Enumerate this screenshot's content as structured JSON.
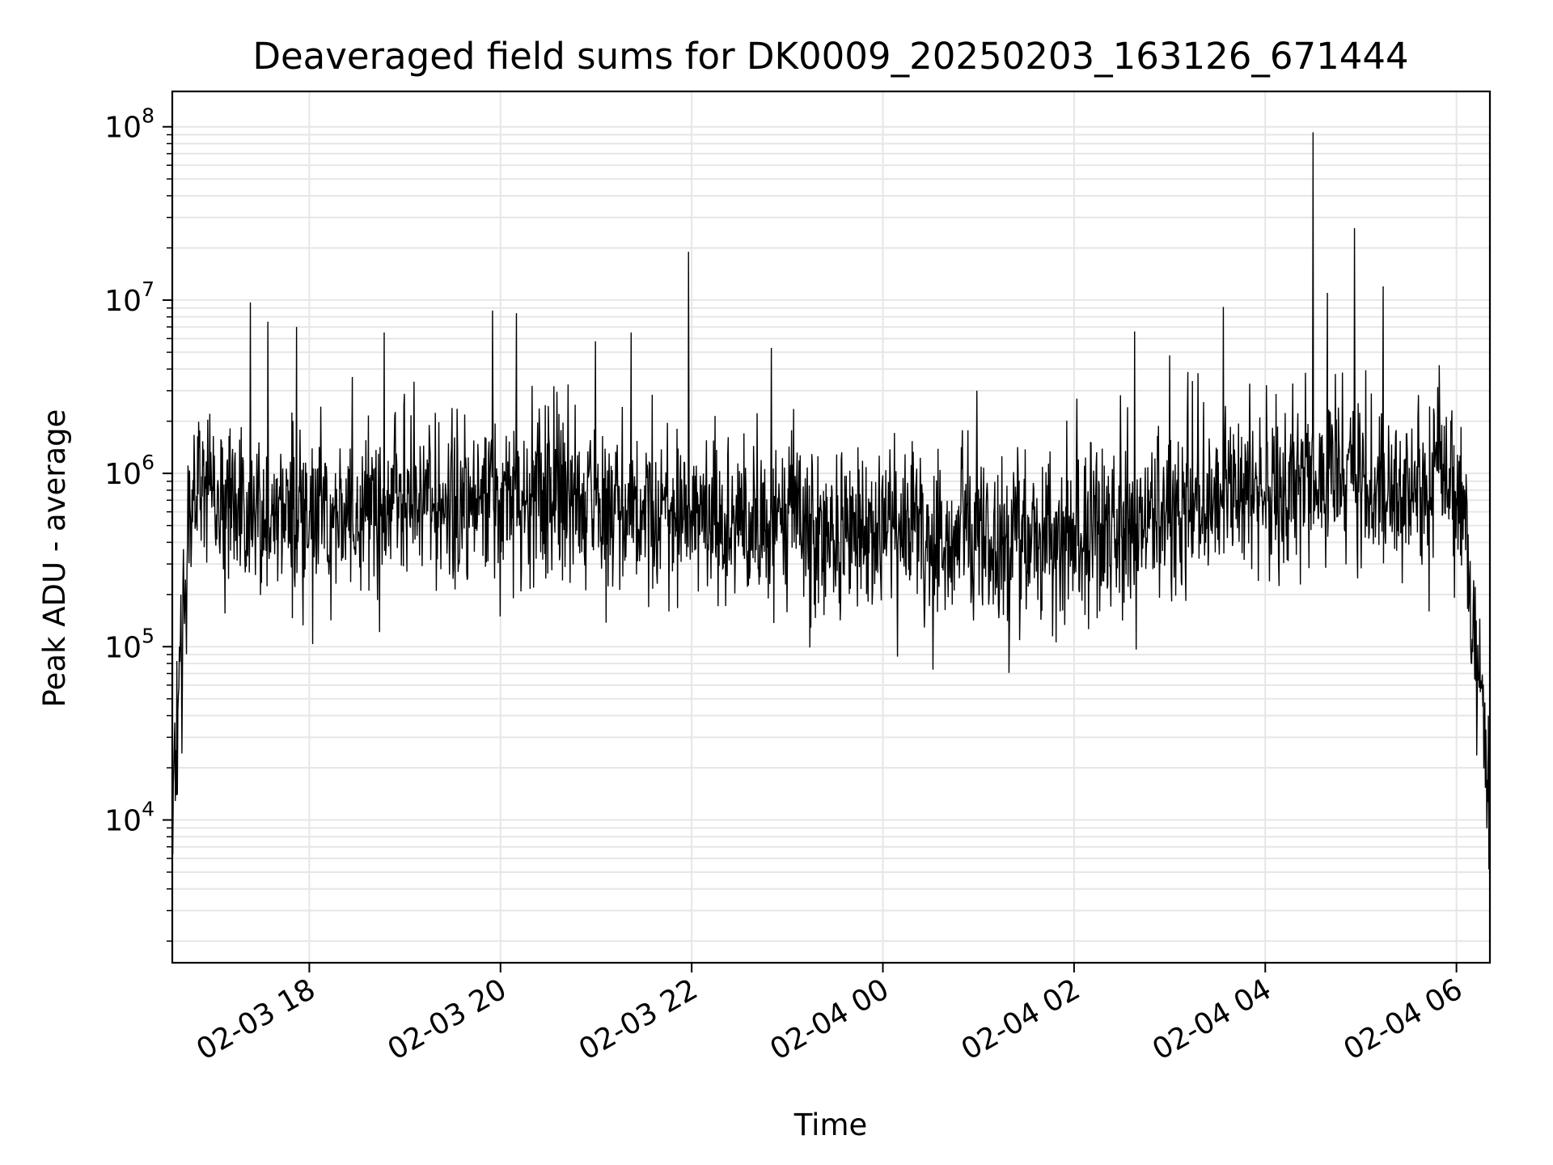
{
  "chart_data": {
    "type": "line",
    "title": "Deaveraged field sums for DK0009_20250203_163126_671444",
    "xlabel": "Time",
    "ylabel": "Peak ADU - average",
    "yscale": "log",
    "ylim": [
      1500,
      160000000
    ],
    "xlim": [
      "2025-02-03 16:34",
      "2025-02-04 06:21"
    ],
    "grid": true,
    "line_color": "#000000",
    "grid_color": "#e6e6e6",
    "x_ticks": [
      {
        "t": "2025-02-03 18:00",
        "label": "02-03 18"
      },
      {
        "t": "2025-02-03 20:00",
        "label": "02-03 20"
      },
      {
        "t": "2025-02-03 22:00",
        "label": "02-03 22"
      },
      {
        "t": "2025-02-04 00:00",
        "label": "02-04 00"
      },
      {
        "t": "2025-02-04 02:00",
        "label": "02-04 02"
      },
      {
        "t": "2025-02-04 04:00",
        "label": "02-04 04"
      },
      {
        "t": "2025-02-04 06:00",
        "label": "02-04 06"
      }
    ],
    "y_ticks": [
      {
        "value": 10000,
        "base": "10",
        "exp": "4"
      },
      {
        "value": 100000,
        "base": "10",
        "exp": "5"
      },
      {
        "value": 1000000,
        "base": "10",
        "exp": "6"
      },
      {
        "value": 10000000,
        "base": "10",
        "exp": "7"
      },
      {
        "value": 100000000,
        "base": "10",
        "exp": "8"
      }
    ],
    "envelope": [
      {
        "t": "2025-02-03 16:34",
        "v": 12000
      },
      {
        "t": "2025-02-03 16:37",
        "v": 40000
      },
      {
        "t": "2025-02-03 16:41",
        "v": 150000
      },
      {
        "t": "2025-02-03 16:45",
        "v": 550000
      },
      {
        "t": "2025-02-03 16:50",
        "v": 950000
      },
      {
        "t": "2025-02-03 17:05",
        "v": 650000
      },
      {
        "t": "2025-02-03 17:30",
        "v": 550000
      },
      {
        "t": "2025-02-03 18:00",
        "v": 550000
      },
      {
        "t": "2025-02-03 19:00",
        "v": 650000
      },
      {
        "t": "2025-02-03 20:00",
        "v": 700000
      },
      {
        "t": "2025-02-03 21:00",
        "v": 650000
      },
      {
        "t": "2025-02-03 22:00",
        "v": 600000
      },
      {
        "t": "2025-02-03 23:00",
        "v": 500000
      },
      {
        "t": "2025-02-04 00:00",
        "v": 420000
      },
      {
        "t": "2025-02-04 01:00",
        "v": 420000
      },
      {
        "t": "2025-02-04 02:00",
        "v": 430000
      },
      {
        "t": "2025-02-04 03:00",
        "v": 600000
      },
      {
        "t": "2025-02-04 04:00",
        "v": 800000
      },
      {
        "t": "2025-02-04 05:00",
        "v": 900000
      },
      {
        "t": "2025-02-04 06:00",
        "v": 800000
      },
      {
        "t": "2025-02-04 06:05",
        "v": 600000
      },
      {
        "t": "2025-02-04 06:10",
        "v": 120000
      },
      {
        "t": "2025-02-04 06:16",
        "v": 50000
      },
      {
        "t": "2025-02-04 06:21",
        "v": 14000
      }
    ],
    "spikes": [
      {
        "t": "2025-02-03 16:34",
        "v": 7000
      },
      {
        "t": "2025-02-03 17:23",
        "v": 9700000
      },
      {
        "t": "2025-02-03 17:34",
        "v": 7500000
      },
      {
        "t": "2025-02-03 17:52",
        "v": 7000000
      },
      {
        "t": "2025-02-03 18:27",
        "v": 3600000
      },
      {
        "t": "2025-02-03 18:47",
        "v": 6500000
      },
      {
        "t": "2025-02-03 19:55",
        "v": 8700000
      },
      {
        "t": "2025-02-03 20:10",
        "v": 8400000
      },
      {
        "t": "2025-02-03 21:22",
        "v": 6500000
      },
      {
        "t": "2025-02-03 21:58",
        "v": 19000000
      },
      {
        "t": "2025-02-03 22:50",
        "v": 5300000
      },
      {
        "t": "2025-02-04 00:59",
        "v": 3000000
      },
      {
        "t": "2025-02-04 02:38",
        "v": 6600000
      },
      {
        "t": "2025-02-04 03:00",
        "v": 4800000
      },
      {
        "t": "2025-02-04 04:30",
        "v": 93000000
      },
      {
        "t": "2025-02-04 04:39",
        "v": 11000000
      },
      {
        "t": "2025-02-04 04:56",
        "v": 26000000
      },
      {
        "t": "2025-02-04 05:14",
        "v": 12000000
      }
    ]
  }
}
